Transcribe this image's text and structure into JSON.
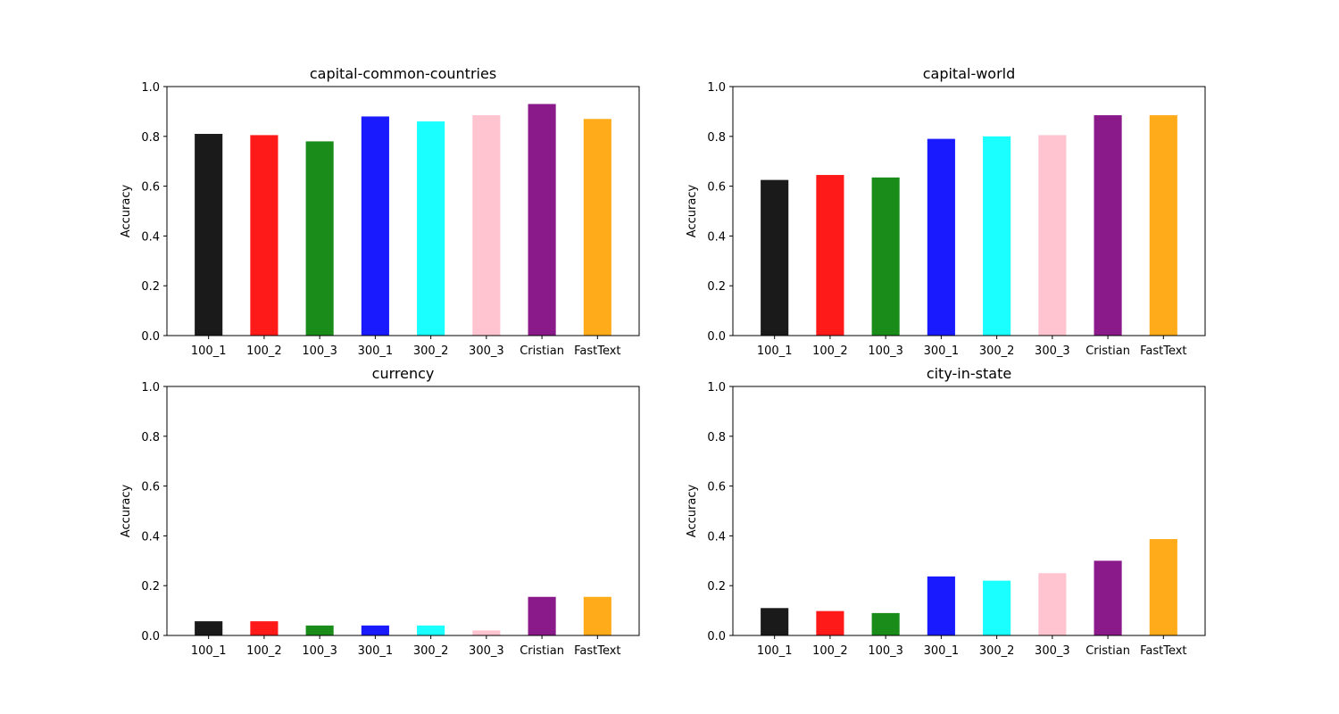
{
  "chart_data": [
    {
      "type": "bar",
      "title": "capital-common-countries",
      "xlabel": "",
      "ylabel": "Accuracy",
      "ylim": [
        0,
        1.0
      ],
      "yticks": [
        "0.0",
        "0.2",
        "0.4",
        "0.6",
        "0.8",
        "1.0"
      ],
      "categories": [
        "100_1",
        "100_2",
        "100_3",
        "300_1",
        "300_2",
        "300_3",
        "Cristian",
        "FastText"
      ],
      "values": [
        0.81,
        0.805,
        0.78,
        0.88,
        0.86,
        0.885,
        0.93,
        0.87
      ]
    },
    {
      "type": "bar",
      "title": "capital-world",
      "xlabel": "",
      "ylabel": "Accuracy",
      "ylim": [
        0,
        1.0
      ],
      "yticks": [
        "0.0",
        "0.2",
        "0.4",
        "0.6",
        "0.8",
        "1.0"
      ],
      "categories": [
        "100_1",
        "100_2",
        "100_3",
        "300_1",
        "300_2",
        "300_3",
        "Cristian",
        "FastText"
      ],
      "values": [
        0.625,
        0.645,
        0.635,
        0.79,
        0.8,
        0.805,
        0.885,
        0.885
      ]
    },
    {
      "type": "bar",
      "title": "currency",
      "xlabel": "",
      "ylabel": "Accuracy",
      "ylim": [
        0,
        1.0
      ],
      "yticks": [
        "0.0",
        "0.2",
        "0.4",
        "0.6",
        "0.8",
        "1.0"
      ],
      "categories": [
        "100_1",
        "100_2",
        "100_3",
        "300_1",
        "300_2",
        "300_3",
        "Cristian",
        "FastText"
      ],
      "values": [
        0.057,
        0.057,
        0.04,
        0.04,
        0.04,
        0.02,
        0.155,
        0.155
      ]
    },
    {
      "type": "bar",
      "title": "city-in-state",
      "xlabel": "",
      "ylabel": "Accuracy",
      "ylim": [
        0,
        1.0
      ],
      "yticks": [
        "0.0",
        "0.2",
        "0.4",
        "0.6",
        "0.8",
        "1.0"
      ],
      "categories": [
        "100_1",
        "100_2",
        "100_3",
        "300_1",
        "300_2",
        "300_3",
        "Cristian",
        "FastText"
      ],
      "values": [
        0.11,
        0.098,
        0.09,
        0.237,
        0.22,
        0.25,
        0.3,
        0.387
      ]
    }
  ],
  "bar_colors": [
    "#1a1a1a",
    "#ff1a1a",
    "#1a8c1a",
    "#1a1aff",
    "#1affff",
    "#ffc4cf",
    "#8a1a8a",
    "#ffab1a"
  ],
  "grid": false
}
